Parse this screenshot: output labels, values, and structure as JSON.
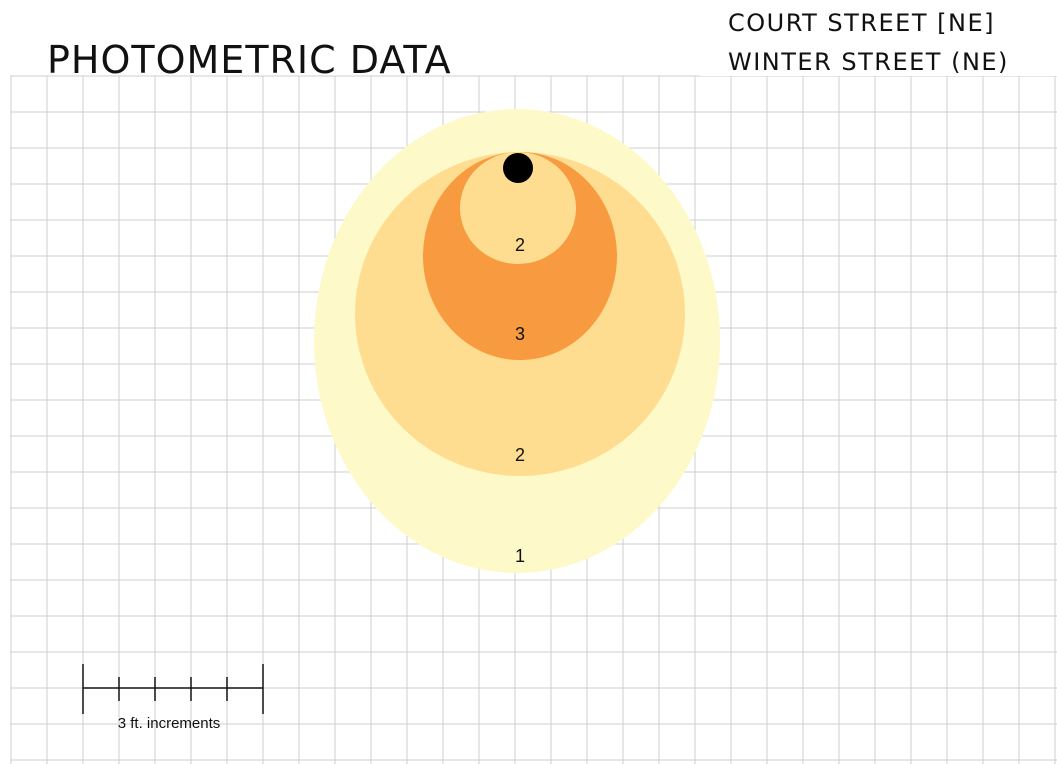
{
  "header": {
    "title": "PHOTOMETRIC DATA",
    "location": [
      "COURT STREET [NE]",
      "WINTER STREET (NE)"
    ]
  },
  "contours": [
    {
      "label": "2"
    },
    {
      "label": "3"
    },
    {
      "label": "2"
    },
    {
      "label": "1"
    }
  ],
  "scale": {
    "label": "3 ft. increments"
  }
}
